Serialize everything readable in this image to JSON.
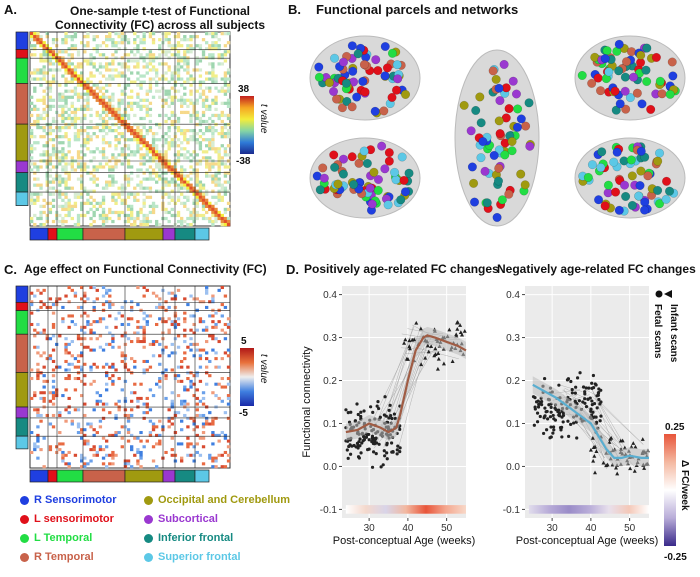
{
  "panel_a": {
    "label": "A.",
    "title_line1": "One-sample t-test of Functional",
    "title_line2": "Connectivity (FC)  across all subjects",
    "cb_max": "38",
    "cb_min": "-38",
    "cb_title": "t value"
  },
  "panel_b": {
    "label": "B.",
    "title": "Functional parcels and networks"
  },
  "panel_c": {
    "label": "C.",
    "title": "Age effect on Functional Connectivity (FC)",
    "cb_max": "5",
    "cb_min": "-5",
    "cb_title": "t value"
  },
  "panel_d": {
    "label": "D.",
    "title_left": "Positively age-related FC changes",
    "title_right": "Negatively age-related FC changes",
    "legend_infant": "Infant scans",
    "legend_fetal": "Fetal scans",
    "cb_max": "0.25",
    "cb_min": "-0.25",
    "cb_title": "Δ FC/week"
  },
  "networks": [
    {
      "name": "R Sensorimotor",
      "color": "#1f3fe0"
    },
    {
      "name": "L sensorimotor",
      "color": "#e0101a"
    },
    {
      "name": "L Temporal",
      "color": "#22dd44"
    },
    {
      "name": "R Temporal",
      "color": "#c8624a"
    },
    {
      "name": "Occipital and Cerebellum",
      "color": "#a09a10"
    },
    {
      "name": "Subcortical",
      "color": "#9a38d0"
    },
    {
      "name": "Inferior frontal",
      "color": "#168a82"
    },
    {
      "name": "Superior frontal",
      "color": "#5cc8e6"
    }
  ],
  "chart_data": [
    {
      "type": "scatter",
      "title": "Positively age-related FC changes",
      "xlabel": "Post-conceptual Age (weeks)",
      "ylabel": "Functional connectivity",
      "xlim": [
        23,
        55
      ],
      "ylim": [
        -0.12,
        0.42
      ],
      "xticks": [
        "30",
        "40",
        "50"
      ],
      "yticks": [
        "-0.1",
        "0.0",
        "0.1",
        "0.2",
        "0.3",
        "0.4"
      ],
      "trend": {
        "x": [
          24,
          27,
          30,
          33,
          35,
          37,
          38,
          40,
          42,
          44,
          45,
          47,
          50,
          53,
          55
        ],
        "y": [
          0.08,
          0.085,
          0.1,
          0.09,
          0.08,
          0.09,
          0.12,
          0.2,
          0.27,
          0.3,
          0.305,
          0.3,
          0.29,
          0.28,
          0.27
        ]
      },
      "series": [
        {
          "name": "Fetal scans",
          "marker": "circle",
          "x_range": [
            24,
            38
          ],
          "y_center": 0.08,
          "y_spread": 0.07,
          "count": 150
        },
        {
          "name": "Infant scans",
          "marker": "triangle",
          "x_range": [
            39,
            55
          ],
          "y_center": 0.29,
          "y_spread": 0.06,
          "count": 60
        }
      ]
    },
    {
      "type": "scatter",
      "title": "Negatively age-related FC changes",
      "xlabel": "Post-conceptual Age (weeks)",
      "ylabel": "",
      "xlim": [
        23,
        55
      ],
      "ylim": [
        -0.12,
        0.42
      ],
      "xticks": [
        "30",
        "40",
        "50"
      ],
      "yticks": [
        "-0.1",
        "0.0",
        "0.1",
        "0.2",
        "0.3",
        "0.4"
      ],
      "trend": {
        "x": [
          25,
          28,
          31,
          34,
          37,
          40,
          42,
          44,
          46,
          48,
          50,
          53,
          55
        ],
        "y": [
          0.19,
          0.175,
          0.16,
          0.14,
          0.12,
          0.1,
          0.07,
          0.04,
          0.02,
          0.02,
          0.025,
          0.02,
          0.02
        ]
      },
      "series": [
        {
          "name": "Fetal scans",
          "marker": "circle",
          "x_range": [
            25,
            43
          ],
          "y_center": 0.14,
          "y_spread": 0.07,
          "count": 150
        },
        {
          "name": "Infant scans",
          "marker": "triangle",
          "x_range": [
            40,
            55
          ],
          "y_center": 0.025,
          "y_spread": 0.04,
          "count": 60
        }
      ]
    }
  ]
}
